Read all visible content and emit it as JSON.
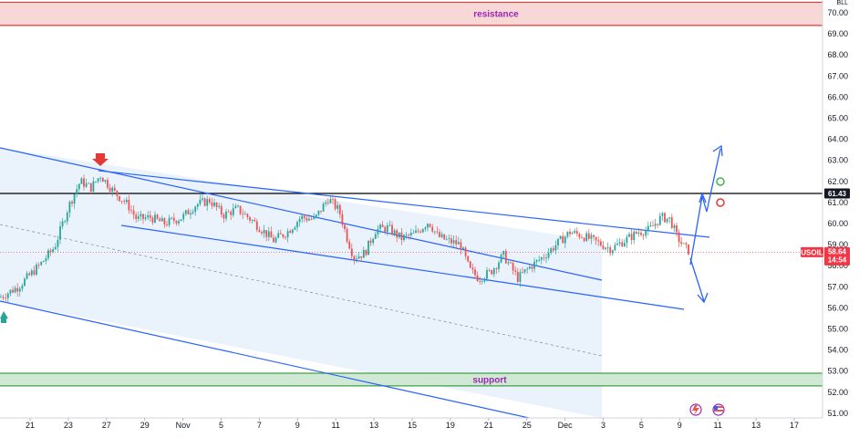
{
  "chart_data": {
    "type": "candlestick",
    "symbol": "USOIL",
    "currency": "BLL",
    "last_price": "58.64",
    "countdown": "14:54",
    "level_label": "61.43",
    "level_value": 61.43,
    "ylim": [
      51,
      70.5
    ],
    "y_ticks": [
      "70.00",
      "69.00",
      "68.00",
      "67.00",
      "66.00",
      "65.00",
      "64.00",
      "63.00",
      "62.00",
      "61.00",
      "60.00",
      "59.00",
      "58.00",
      "57.00",
      "56.00",
      "55.00",
      "54.00",
      "53.00",
      "52.00",
      "51.00"
    ],
    "x_ticks": [
      "21",
      "23",
      "27",
      "29",
      "Nov",
      "5",
      "7",
      "9",
      "11",
      "13",
      "15",
      "19",
      "21",
      "25",
      "Dec",
      "3",
      "5",
      "9",
      "11",
      "13",
      "17"
    ],
    "zones": {
      "resistance": {
        "label": "resistance",
        "from": 69.4,
        "to": 70.5
      },
      "support": {
        "label": "support",
        "from": 52.3,
        "to": 52.9
      }
    },
    "price_path": [
      [
        0,
        56.5
      ],
      [
        20,
        57.0
      ],
      [
        45,
        58.1
      ],
      [
        60,
        58.9
      ],
      [
        75,
        60.8
      ],
      [
        88,
        62.0
      ],
      [
        100,
        61.7
      ],
      [
        110,
        62.3
      ],
      [
        125,
        61.5
      ],
      [
        140,
        60.9
      ],
      [
        150,
        60.2
      ],
      [
        165,
        60.3
      ],
      [
        180,
        60.0
      ],
      [
        200,
        60.3
      ],
      [
        215,
        60.9
      ],
      [
        230,
        61.1
      ],
      [
        245,
        60.4
      ],
      [
        260,
        60.7
      ],
      [
        275,
        60.2
      ],
      [
        290,
        59.6
      ],
      [
        300,
        59.2
      ],
      [
        315,
        59.6
      ],
      [
        330,
        60.3
      ],
      [
        345,
        60.2
      ],
      [
        360,
        61.2
      ],
      [
        372,
        60.6
      ],
      [
        380,
        59.4
      ],
      [
        388,
        58.4
      ],
      [
        400,
        58.6
      ],
      [
        412,
        59.7
      ],
      [
        425,
        59.8
      ],
      [
        440,
        59.3
      ],
      [
        455,
        59.5
      ],
      [
        470,
        60.1
      ],
      [
        480,
        59.4
      ],
      [
        490,
        59.2
      ],
      [
        505,
        59.0
      ],
      [
        515,
        57.8
      ],
      [
        525,
        57.4
      ],
      [
        538,
        57.7
      ],
      [
        552,
        58.5
      ],
      [
        568,
        57.4
      ],
      [
        580,
        57.9
      ],
      [
        595,
        58.4
      ],
      [
        610,
        59.0
      ],
      [
        625,
        59.6
      ],
      [
        640,
        59.4
      ],
      [
        655,
        59.1
      ],
      [
        670,
        58.8
      ],
      [
        685,
        59.2
      ],
      [
        700,
        59.6
      ],
      [
        712,
        59.7
      ],
      [
        725,
        60.3
      ],
      [
        735,
        60.2
      ],
      [
        742,
        59.4
      ],
      [
        750,
        58.9
      ],
      [
        757,
        58.64
      ]
    ]
  },
  "markers": {
    "down_arrow_color": "#e53935",
    "up_arrow_color": "#26a69a",
    "green_circle_color": "#4caf50",
    "red_circle_color": "#e53935"
  },
  "colors": {
    "up_candle": "#26a69a",
    "down_candle": "#ef5350",
    "trendline": "#2962ff",
    "channel_fill": "#e3edfb",
    "resistance_fill": "#f8d7d7",
    "resistance_border": "#e53935",
    "support_fill": "#cfe9d4",
    "support_border": "#43a047",
    "level_line": "#000000",
    "last_price_tag": "#f23645",
    "level_tag": "#131722"
  },
  "icons": {
    "event_icon_1": "lightning-flag-icon",
    "event_icon_2": "us-flag-icon"
  }
}
